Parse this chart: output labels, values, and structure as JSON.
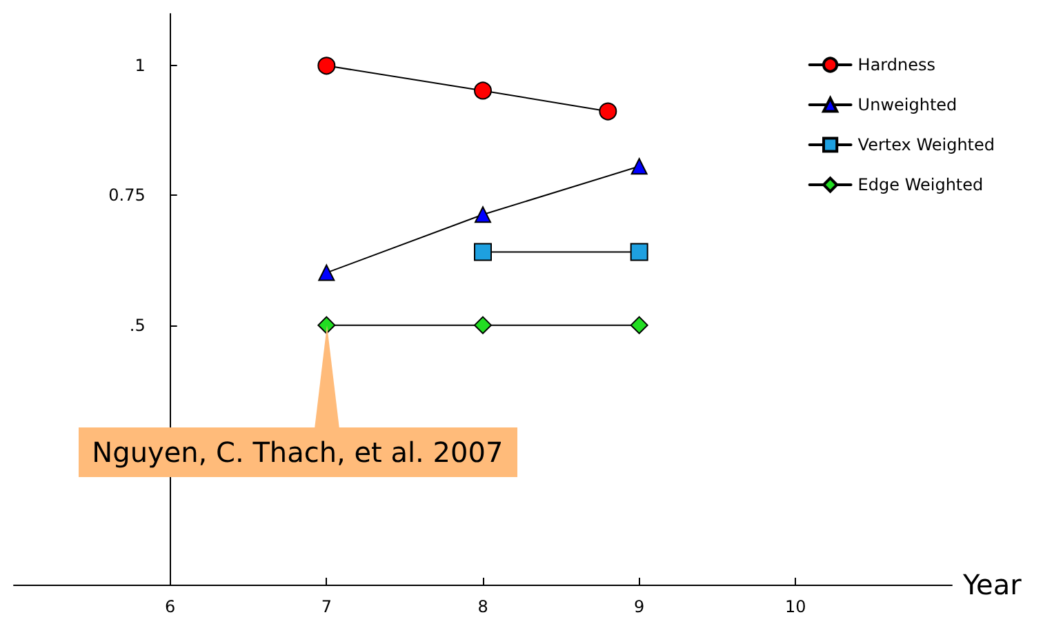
{
  "chart_data": {
    "type": "line",
    "xlabel": "Year",
    "xlim": [
      5,
      11
    ],
    "xticks": [
      6,
      7,
      8,
      9,
      10
    ],
    "ylim": [
      0,
      1.1
    ],
    "yticks": [
      {
        "value": 0.5,
        "label": ".5"
      },
      {
        "value": 0.75,
        "label": "0.75"
      },
      {
        "value": 1,
        "label": "1"
      }
    ],
    "grid": false,
    "legend": "top right",
    "line_style": "solid",
    "series": [
      {
        "name": "Hardness",
        "color": "#ff0000",
        "marker": "circle",
        "x": [
          7,
          8,
          8.8
        ],
        "values": [
          1,
          0.952,
          0.912
        ]
      },
      {
        "name": "Unweighted",
        "color": "#0000ff",
        "marker": "triangle",
        "x": [
          7,
          8,
          9
        ],
        "values": [
          0.601,
          0.713,
          0.806
        ]
      },
      {
        "name": "Vertex Weighted",
        "color": "#1ea0e0",
        "marker": "square",
        "x": [
          8,
          9
        ],
        "values": [
          0.641,
          0.641
        ]
      },
      {
        "name": "Edge Weighted",
        "color": "#22dd22",
        "marker": "diamond",
        "x": [
          7,
          8,
          9
        ],
        "values": [
          0.5,
          0.5,
          0.5
        ]
      }
    ],
    "annotations": [
      {
        "text": "Nguyen, C. Thach, et al. 2007",
        "x": 7,
        "y": 0.5
      }
    ]
  }
}
